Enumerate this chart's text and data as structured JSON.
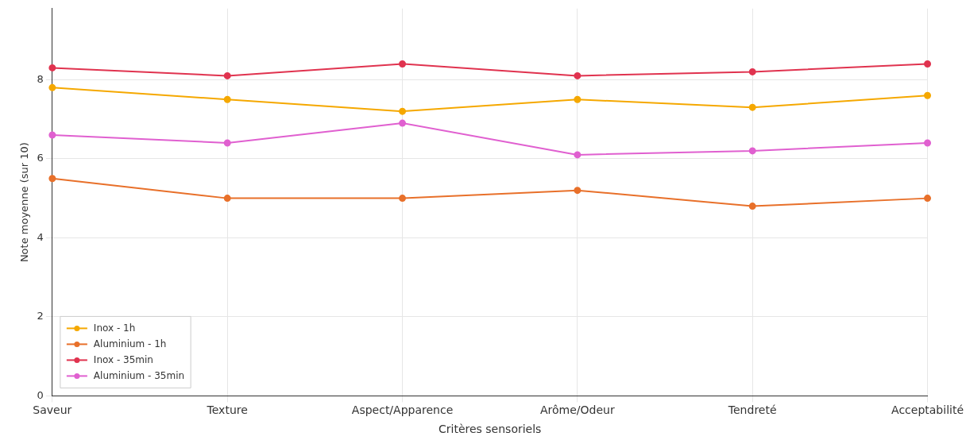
{
  "chart_data": {
    "type": "line",
    "xlabel": "Critères sensoriels",
    "ylabel": "Note moyenne (sur 10)",
    "categories": [
      "Saveur",
      "Texture",
      "Aspect/Apparence",
      "Arôme/Odeur",
      "Tendreté",
      "Acceptabilité"
    ],
    "series": [
      {
        "name": "Inox - 1h",
        "color": "#f5a800",
        "values": [
          7.8,
          7.5,
          7.2,
          7.5,
          7.3,
          7.6
        ]
      },
      {
        "name": "Aluminium - 1h",
        "color": "#e8702a",
        "values": [
          5.5,
          5.0,
          5.0,
          5.2,
          4.8,
          5.0
        ]
      },
      {
        "name": "Inox - 35min",
        "color": "#e0334f",
        "values": [
          8.3,
          8.1,
          8.4,
          8.1,
          8.2,
          8.4
        ]
      },
      {
        "name": "Aluminium - 35min",
        "color": "#e060d0",
        "values": [
          6.6,
          6.4,
          6.9,
          6.1,
          6.2,
          6.4
        ]
      }
    ],
    "ylim": [
      0,
      9.8
    ],
    "yticks": [
      0,
      2,
      4,
      6,
      8
    ],
    "grid": true,
    "legend": "bottom left",
    "marker": "circle",
    "line_style": "solid"
  }
}
